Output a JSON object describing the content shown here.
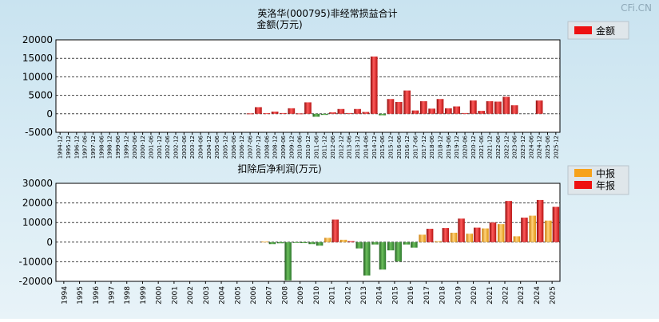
{
  "watermark": "CFi.CN",
  "chart_data": [
    {
      "type": "bar",
      "title": "英洛华(000795)非经常损益合计",
      "ylabel": "金额(万元)",
      "ylim": [
        -5000,
        20000
      ],
      "yticks": [
        20000,
        15000,
        10000,
        5000,
        0,
        -5000
      ],
      "legend": [
        {
          "name": "金额",
          "color": "#ee1111"
        }
      ],
      "categories": [
        "1994-12",
        "1995-12",
        "1996-12",
        "1997-06",
        "1997-12",
        "1998-06",
        "1998-12",
        "1999-06",
        "1999-12",
        "2000-06",
        "2000-12",
        "2001-06",
        "2001-12",
        "2002-06",
        "2002-12",
        "2003-06",
        "2003-12",
        "2004-06",
        "2004-12",
        "2005-06",
        "2005-12",
        "2006-06",
        "2006-12",
        "2007-06",
        "2007-12",
        "2008-06",
        "2008-12",
        "2009-06",
        "2009-12",
        "2010-06",
        "2010-12",
        "2011-06",
        "2011-12",
        "2012-06",
        "2012-12",
        "2013-06",
        "2013-12",
        "2014-06",
        "2014-12",
        "2015-06",
        "2015-12",
        "2016-06",
        "2016-12",
        "2017-06",
        "2017-12",
        "2018-06",
        "2018-12",
        "2019-06",
        "2019-12",
        "2020-06",
        "2020-12",
        "2021-06",
        "2021-12",
        "2022-06",
        "2022-12",
        "2023-06",
        "2023-12",
        "2024-06",
        "2024-12",
        "2025-06",
        "2025-12"
      ],
      "values": [
        0,
        0,
        0,
        0,
        0,
        0,
        0,
        0,
        0,
        0,
        0,
        0,
        0,
        0,
        0,
        0,
        0,
        0,
        0,
        0,
        0,
        0,
        0,
        100,
        1800,
        150,
        600,
        200,
        1500,
        100,
        3100,
        -800,
        -300,
        400,
        1300,
        200,
        1300,
        500,
        15500,
        -400,
        4000,
        3200,
        6300,
        900,
        3400,
        1400,
        4000,
        1500,
        2000,
        200,
        3600,
        800,
        3400,
        3300,
        4600,
        2300,
        0,
        0,
        3600,
        0,
        0
      ]
    },
    {
      "type": "bar",
      "title": "扣除后净利润(万元)",
      "ylim": [
        -20000,
        30000
      ],
      "yticks": [
        30000,
        20000,
        10000,
        0,
        -10000,
        -20000
      ],
      "legend": [
        {
          "name": "中报",
          "color": "#f7a21a"
        },
        {
          "name": "年报",
          "color": "#ee1111"
        }
      ],
      "categories": [
        "1994",
        "1995",
        "1996",
        "1997",
        "1998",
        "1999",
        "2000",
        "2001",
        "2002",
        "2003",
        "2004",
        "2005",
        "2006",
        "2007",
        "2008",
        "2009",
        "2010",
        "2011",
        "2012",
        "2013",
        "2014",
        "2015",
        "2016",
        "2017",
        "2018",
        "2019",
        "2020",
        "2021",
        "2022",
        "2023",
        "2024",
        "2025"
      ],
      "series": [
        {
          "name": "中报",
          "values": [
            null,
            null,
            null,
            null,
            null,
            null,
            null,
            null,
            null,
            null,
            null,
            null,
            null,
            300,
            -600,
            -200,
            -1000,
            2200,
            1200,
            -3200,
            -1200,
            -4200,
            -1200,
            3800,
            500,
            4800,
            4300,
            7000,
            9200,
            3000,
            13500,
            11000
          ]
        },
        {
          "name": "年报",
          "values": [
            null,
            null,
            null,
            null,
            null,
            null,
            null,
            null,
            null,
            null,
            null,
            null,
            null,
            -1000,
            -19500,
            -500,
            -1800,
            11500,
            500,
            -17000,
            -14000,
            -9800,
            -2800,
            6800,
            7200,
            12000,
            7400,
            10000,
            21000,
            12500,
            21500,
            18000
          ]
        }
      ]
    }
  ]
}
